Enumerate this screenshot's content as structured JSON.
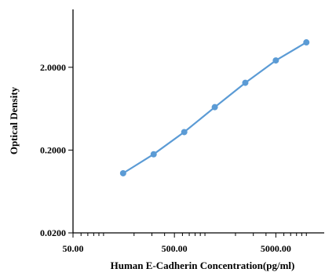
{
  "chart_data": {
    "type": "line",
    "title": "",
    "xlabel": "Human E-Cadherin Concentration(pg/ml)",
    "ylabel": "Optical Density",
    "x_scale": "log",
    "y_scale": "log",
    "xlim": [
      50,
      15000
    ],
    "ylim": [
      0.02,
      10
    ],
    "x_tick_labels": [
      "50.00",
      "500.00",
      "5000.00"
    ],
    "y_tick_labels": [
      "0.0200",
      "0.2000",
      "2.0000"
    ],
    "x_ticks": [
      50,
      500,
      5000
    ],
    "y_ticks": [
      0.02,
      0.2,
      2
    ],
    "grid": false,
    "legend": "none",
    "series": [
      {
        "x": [
          156,
          312,
          625,
          1250,
          2500,
          5000,
          10000
        ],
        "y": [
          0.105,
          0.178,
          0.33,
          0.66,
          1.3,
          2.42,
          4.0
        ]
      }
    ]
  },
  "colors": {
    "line": "#5b9bd5",
    "marker": "#5b9bd5",
    "axis": "#000000"
  }
}
